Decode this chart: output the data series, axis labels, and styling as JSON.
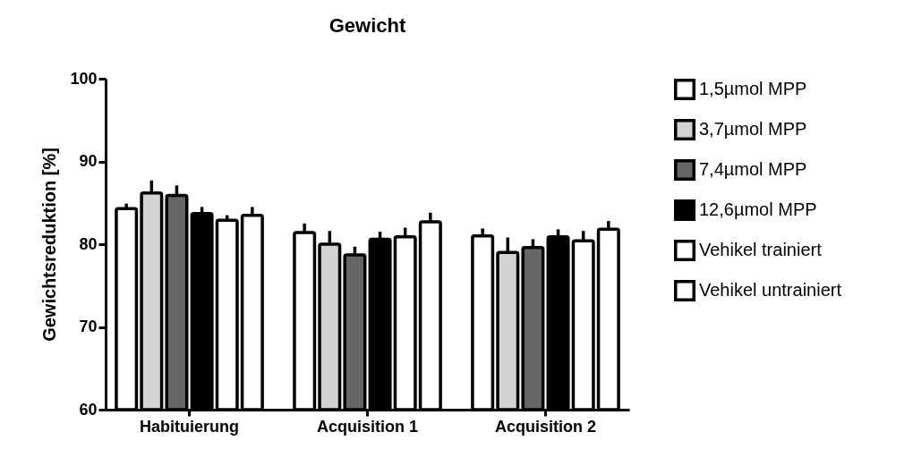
{
  "chart_data": {
    "type": "bar",
    "title": "Gewicht",
    "ylabel": "Gewichtsreduktion [%]",
    "categories": [
      "Habituierung",
      "Acquisition 1",
      "Acquisition 2"
    ],
    "series": [
      {
        "name": "1,5µmol MPP",
        "color": "#ffffff",
        "values": [
          84.3,
          81.4,
          81.0
        ],
        "errors": [
          0.6,
          1.1,
          0.9
        ]
      },
      {
        "name": "3,7µmol MPP",
        "color": "#d3d3d3",
        "values": [
          86.2,
          80.0,
          79.0
        ],
        "errors": [
          1.5,
          1.6,
          1.8
        ]
      },
      {
        "name": "7,4µmol MPP",
        "color": "#666666",
        "values": [
          85.9,
          78.7,
          79.6
        ],
        "errors": [
          1.2,
          1.0,
          1.0
        ]
      },
      {
        "name": "12,6µmol MPP",
        "color": "#000000",
        "values": [
          83.7,
          80.6,
          80.9
        ],
        "errors": [
          0.8,
          0.9,
          0.9
        ]
      },
      {
        "name": "Vehikel trainiert",
        "color": "#ffffff",
        "values": [
          82.9,
          80.9,
          80.4
        ],
        "errors": [
          0.6,
          1.1,
          1.2
        ]
      },
      {
        "name": "Vehikel untrainiert",
        "color": "#ffffff",
        "values": [
          83.5,
          82.7,
          81.8
        ],
        "errors": [
          1.0,
          1.1,
          1.0
        ]
      }
    ],
    "ylim": [
      60,
      100
    ],
    "yticks": [
      60,
      70,
      80,
      90,
      100
    ],
    "grid": false,
    "legend": "right"
  }
}
